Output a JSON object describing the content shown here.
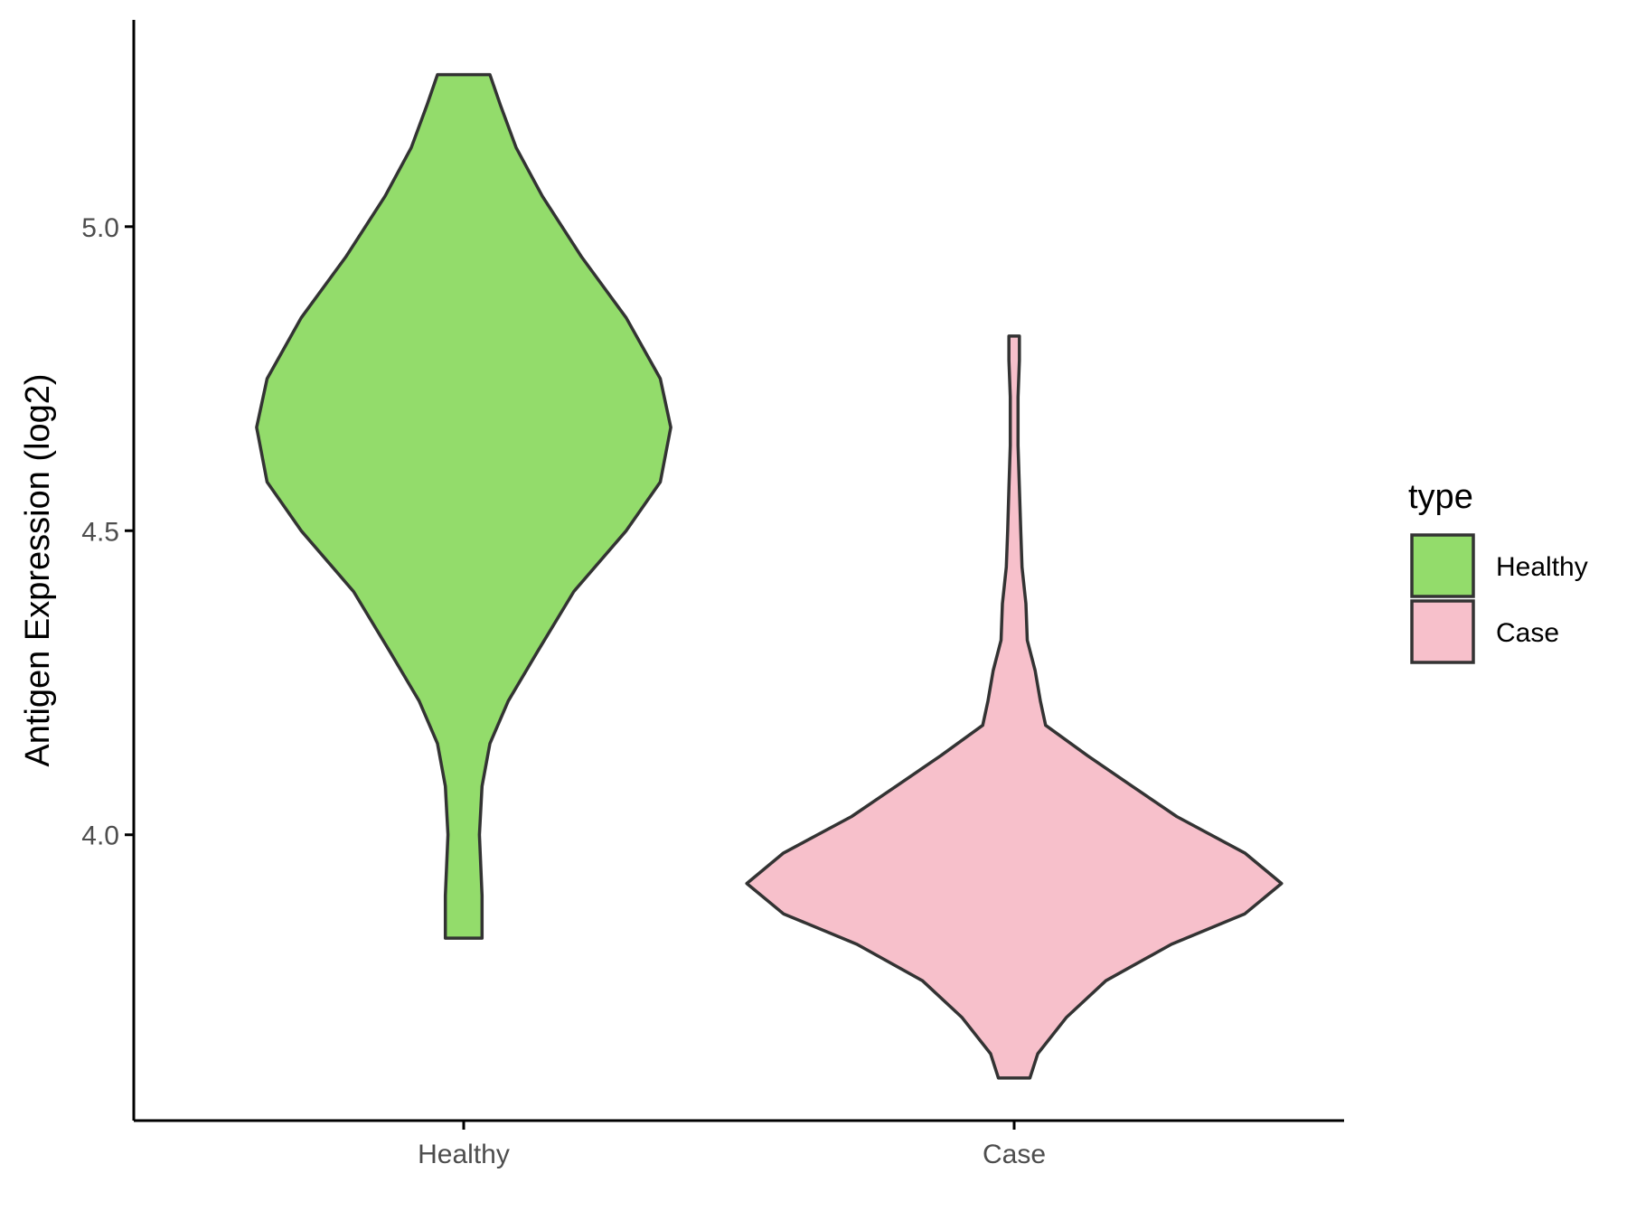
{
  "chart_data": {
    "type": "violin",
    "xlabel": "",
    "ylabel": "Antigen Expression (log2)",
    "categories": [
      "Healthy",
      "Case"
    ],
    "yticks": [
      "4.0",
      "4.5",
      "5.0"
    ],
    "ylim": [
      3.53,
      5.34
    ],
    "grid": false,
    "legend": {
      "title": "type",
      "placement": "right",
      "entries": [
        {
          "label": "Healthy",
          "color": "#93dc6b"
        },
        {
          "label": "Case",
          "color": "#f7c0cb"
        }
      ]
    },
    "series": [
      {
        "category": "Healthy",
        "color": "#93dc6b",
        "min": 3.83,
        "max": 5.25,
        "density": [
          [
            3.83,
            0.07
          ],
          [
            3.9,
            0.07
          ],
          [
            4.0,
            0.06
          ],
          [
            4.08,
            0.07
          ],
          [
            4.15,
            0.1
          ],
          [
            4.22,
            0.17
          ],
          [
            4.3,
            0.28
          ],
          [
            4.4,
            0.42
          ],
          [
            4.5,
            0.62
          ],
          [
            4.58,
            0.75
          ],
          [
            4.67,
            0.79
          ],
          [
            4.75,
            0.75
          ],
          [
            4.85,
            0.62
          ],
          [
            4.95,
            0.45
          ],
          [
            5.05,
            0.3
          ],
          [
            5.13,
            0.2
          ],
          [
            5.2,
            0.14
          ],
          [
            5.25,
            0.1
          ]
        ]
      },
      {
        "category": "Case",
        "color": "#f7c0cb",
        "min": 3.6,
        "max": 4.82,
        "density": [
          [
            3.6,
            0.06
          ],
          [
            3.64,
            0.09
          ],
          [
            3.7,
            0.2
          ],
          [
            3.76,
            0.35
          ],
          [
            3.82,
            0.6
          ],
          [
            3.87,
            0.88
          ],
          [
            3.92,
            1.02
          ],
          [
            3.97,
            0.88
          ],
          [
            4.03,
            0.62
          ],
          [
            4.08,
            0.45
          ],
          [
            4.13,
            0.28
          ],
          [
            4.18,
            0.12
          ],
          [
            4.22,
            0.1
          ],
          [
            4.27,
            0.08
          ],
          [
            4.32,
            0.05
          ],
          [
            4.38,
            0.045
          ],
          [
            4.44,
            0.03
          ],
          [
            4.5,
            0.025
          ],
          [
            4.57,
            0.02
          ],
          [
            4.64,
            0.015
          ],
          [
            4.72,
            0.015
          ],
          [
            4.78,
            0.02
          ],
          [
            4.82,
            0.02
          ]
        ]
      }
    ]
  }
}
